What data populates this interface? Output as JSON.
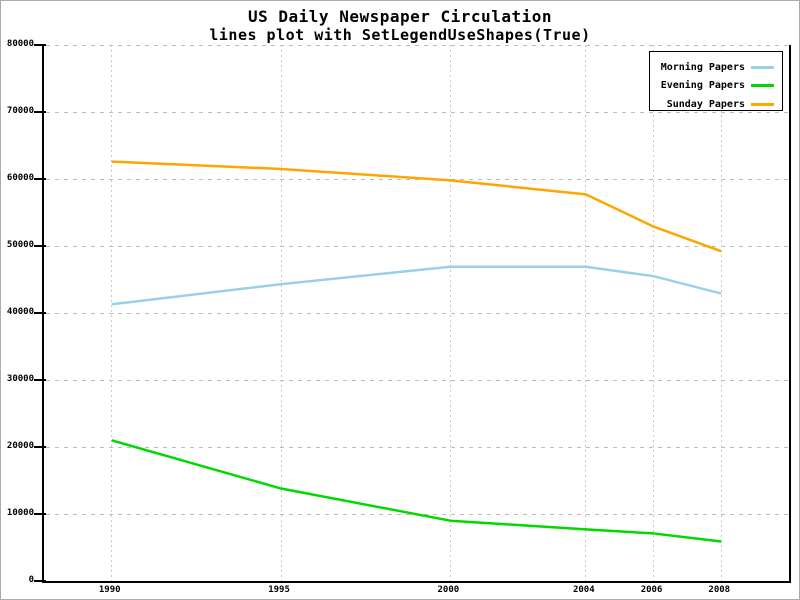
{
  "title": "US Daily Newspaper Circulation",
  "subtitle": "lines plot with SetLegendUseShapes(True)",
  "chart_data": {
    "type": "line",
    "x": [
      1990,
      1995,
      2000,
      2004,
      2006,
      2008
    ],
    "series": [
      {
        "name": "Morning Papers",
        "color": "#99cfe8",
        "values": [
          41300,
          44300,
          46900,
          46900,
          45500,
          42900
        ]
      },
      {
        "name": "Evening Papers",
        "color": "#00d800",
        "values": [
          21000,
          13800,
          9000,
          7700,
          7100,
          5900
        ]
      },
      {
        "name": "Sunday Papers",
        "color": "#ffa500",
        "values": [
          62600,
          61500,
          59800,
          57700,
          52900,
          49200
        ]
      }
    ],
    "x_ticks": [
      1990,
      1995,
      2000,
      2004,
      2006,
      2008
    ],
    "y_ticks": [
      0,
      10000,
      20000,
      30000,
      40000,
      50000,
      60000,
      70000,
      80000
    ],
    "xlim": [
      1988,
      2010
    ],
    "ylim": [
      0,
      80000
    ],
    "grid": true,
    "legend_position": "top-right",
    "xlabel": "",
    "ylabel": ""
  }
}
